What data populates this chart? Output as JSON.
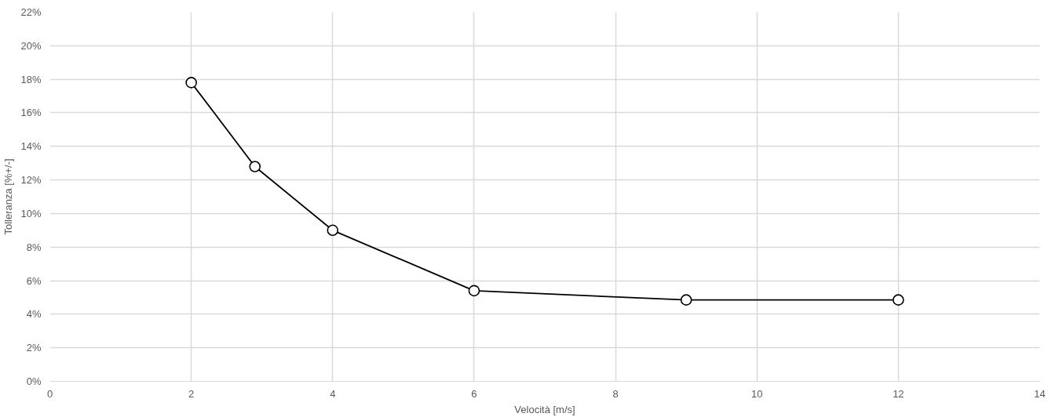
{
  "chart_data": {
    "type": "line",
    "xlabel": "Velocità [m/s]",
    "ylabel": "Tolleranza [%+/-]",
    "x": [
      2,
      2.9,
      4,
      6,
      9,
      12
    ],
    "series": [
      {
        "color": "#000000",
        "values": [
          17.8,
          12.8,
          9.0,
          5.4,
          4.85,
          4.85
        ]
      }
    ],
    "xlim": [
      0,
      14
    ],
    "xticks": [
      0,
      2,
      4,
      6,
      8,
      10,
      12,
      14
    ],
    "ylim": [
      0,
      22
    ],
    "yticks": [
      {
        "value": 0,
        "label": "0%"
      },
      {
        "value": 2,
        "label": "2%"
      },
      {
        "value": 4,
        "label": "4%"
      },
      {
        "value": 6,
        "label": "6%"
      },
      {
        "value": 8,
        "label": "8%"
      },
      {
        "value": 10,
        "label": "10%"
      },
      {
        "value": 12,
        "label": "12%"
      },
      {
        "value": 14,
        "label": "14%"
      },
      {
        "value": 16,
        "label": "16%"
      },
      {
        "value": 18,
        "label": "18%"
      },
      {
        "value": 20,
        "label": "20%"
      },
      {
        "value": 22,
        "label": "22%"
      }
    ],
    "grid": true,
    "marker": "circle",
    "line_style": "solid"
  }
}
